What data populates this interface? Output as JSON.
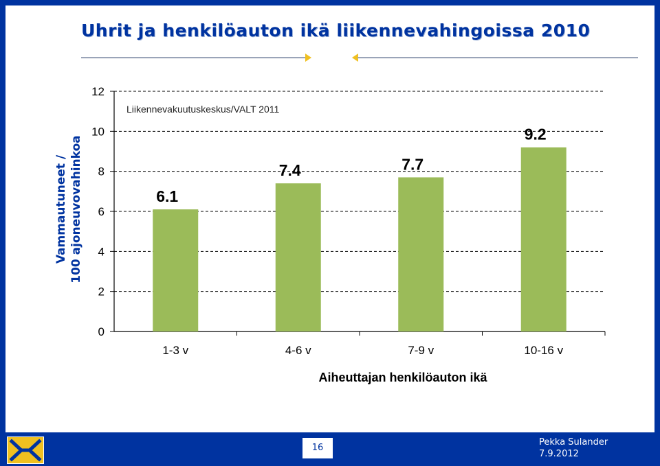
{
  "slide": {
    "title": "Uhrit ja henkilöauton ikä liikennevahingoissa 2010",
    "page_number": "16",
    "author": "Pekka Sulander",
    "date": "7.9.2012"
  },
  "colors": {
    "background": "#0033a0",
    "title": "#0033a0",
    "bar": "#9bbb59",
    "accent": "#f0c020"
  },
  "logo": {
    "icon": "insurance-center-logo"
  },
  "chart_data": {
    "type": "bar",
    "source_note": "Liikennevakuutuskeskus/VALT 2011",
    "categories": [
      "1-3 v",
      "4-6 v",
      "7-9 v",
      "10-16 v"
    ],
    "values": [
      6.1,
      7.4,
      7.7,
      9.2
    ],
    "data_labels": [
      "6.1",
      "7.4",
      "7.7",
      "9.2"
    ],
    "xlabel": "Aiheuttajan henkilöauton ikä",
    "ylabel": "Vammautuneet / 100 ajoneuvovahinkoa",
    "ylim": [
      0,
      12
    ],
    "yticks": [
      "0",
      "2",
      "4",
      "6",
      "8",
      "10",
      "12"
    ],
    "grid": "dashed horizontal"
  }
}
